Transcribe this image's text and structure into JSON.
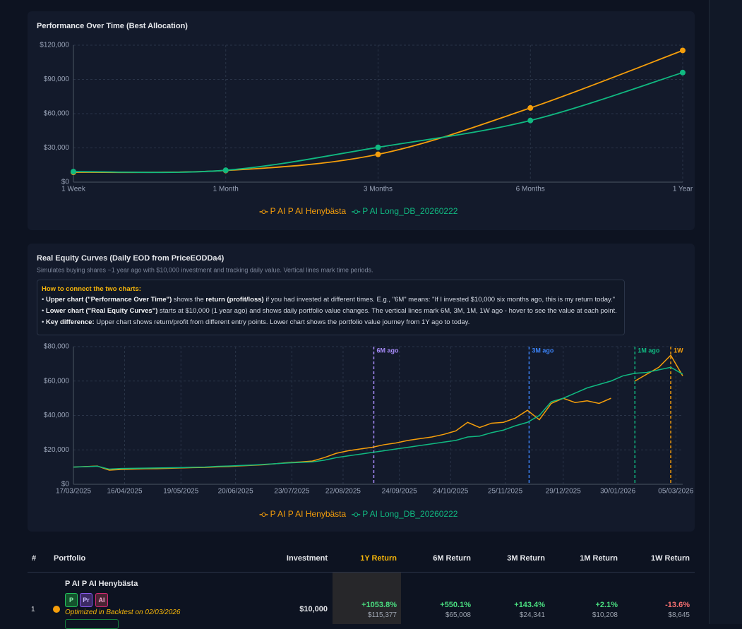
{
  "chart_data": [
    {
      "type": "line",
      "title": "Performance Over Time (Best Allocation)",
      "categories": [
        "1 Week",
        "1 Month",
        "3 Months",
        "6 Months",
        "1 Year"
      ],
      "series": [
        {
          "name": "P AI P AI Henybästa",
          "color": "#f59e0b",
          "values": [
            8645,
            10208,
            24341,
            65008,
            115377
          ]
        },
        {
          "name": "P AI Long_DB_20260222",
          "color": "#10b981",
          "values": [
            9200,
            10400,
            30500,
            54000,
            96000
          ]
        }
      ],
      "ylim": [
        0,
        120000
      ],
      "yticks": [
        {
          "value": 0,
          "label": "$0"
        },
        {
          "value": 30000,
          "label": "$30,000"
        },
        {
          "value": 60000,
          "label": "$60,000"
        },
        {
          "value": 90000,
          "label": "$90,000"
        },
        {
          "value": 120000,
          "label": "$120,000"
        }
      ],
      "grid": true,
      "legend": "bottom",
      "smooth": true,
      "points": true
    },
    {
      "type": "line",
      "title": "Real Equity Curves (Daily EOD from PriceEODDa4)",
      "subtitle": "Simulates buying shares ~1 year ago with $10,000 investment and tracking daily value. Vertical lines mark time periods.",
      "note": {
        "heading": "How to connect the two charts:",
        "items": [
          [
            {
              "text": "Upper chart (\"Performance Over Time\")",
              "bold": true
            },
            {
              "text": " shows the ",
              "bold": false
            },
            {
              "text": "return (profit/loss)",
              "bold": true
            },
            {
              "text": " if you had invested at different times. E.g., \"6M\" means: \"If I invested $10,000 six months ago, this is my return today.\"",
              "bold": false
            }
          ],
          [
            {
              "text": "Lower chart (\"Real Equity Curves\")",
              "bold": true
            },
            {
              "text": " starts at $10,000 (1 year ago) and shows daily portfolio value changes. The vertical lines mark 6M, 3M, 1M, 1W ago - hover to see the value at each point.",
              "bold": false
            }
          ],
          [
            {
              "text": "Key difference:",
              "bold": true
            },
            {
              "text": " Upper chart shows return/profit from different entry points. Lower chart shows the portfolio value journey from 1Y ago to today.",
              "bold": false
            }
          ]
        ]
      },
      "x": [
        "17/03/2025",
        "24/03/2025",
        "31/03/2025",
        "07/04/2025",
        "14/04/2025",
        "21/04/2025",
        "28/04/2025",
        "05/05/2025",
        "12/05/2025",
        "19/05/2025",
        "26/05/2025",
        "02/06/2025",
        "09/06/2025",
        "16/06/2025",
        "23/06/2025",
        "30/06/2025",
        "07/07/2025",
        "14/07/2025",
        "21/07/2025",
        "28/07/2025",
        "04/08/2025",
        "11/08/2025",
        "18/08/2025",
        "25/08/2025",
        "01/09/2025",
        "08/09/2025",
        "15/09/2025",
        "22/09/2025",
        "29/09/2025",
        "06/10/2025",
        "13/10/2025",
        "20/10/2025",
        "27/10/2025",
        "03/11/2025",
        "10/11/2025",
        "17/11/2025",
        "24/11/2025",
        "01/12/2025",
        "08/12/2025",
        "15/12/2025",
        "22/12/2025",
        "29/12/2025",
        "05/01/2026",
        "12/01/2026",
        "19/01/2026",
        "26/01/2026",
        "02/02/2026",
        "09/02/2026",
        "16/02/2026",
        "23/02/2026",
        "02/03/2026",
        "09/03/2026"
      ],
      "series": [
        {
          "name": "P AI P AI Henybästa",
          "color": "#f59e0b",
          "values": [
            10000,
            10300,
            10600,
            8200,
            8600,
            8800,
            9000,
            9100,
            9300,
            9500,
            9700,
            9800,
            10100,
            10300,
            10700,
            11000,
            11400,
            12000,
            12600,
            13000,
            13500,
            15500,
            18000,
            19500,
            20500,
            21500,
            23000,
            24000,
            25500,
            26500,
            27500,
            29000,
            31000,
            36000,
            33000,
            35500,
            36000,
            38500,
            43000,
            37500,
            47000,
            50000,
            47500,
            48500,
            47000,
            50000,
            null,
            60000,
            64000,
            68000,
            75000,
            63000
          ]
        },
        {
          "name": "P AI Long_DB_20260222",
          "color": "#10b981",
          "values": [
            10000,
            10200,
            10500,
            8800,
            9200,
            9300,
            9400,
            9500,
            9600,
            9700,
            9900,
            10000,
            10400,
            10600,
            10900,
            11200,
            11600,
            12000,
            12400,
            12700,
            13000,
            14000,
            15500,
            16500,
            17500,
            18500,
            19500,
            20500,
            21500,
            22500,
            23500,
            24500,
            25500,
            27500,
            28000,
            30000,
            31500,
            34000,
            36000,
            40000,
            48000,
            50000,
            53000,
            56000,
            58000,
            60000,
            63000,
            64500,
            65000,
            66500,
            68000,
            64000
          ]
        }
      ],
      "ylim": [
        0,
        80000
      ],
      "yticks": [
        {
          "value": 0,
          "label": "$0"
        },
        {
          "value": 20000,
          "label": "$20,000"
        },
        {
          "value": 40000,
          "label": "$40,000"
        },
        {
          "value": 60000,
          "label": "$60,000"
        },
        {
          "value": 80000,
          "label": "$80,000"
        }
      ],
      "xticks": [
        "17/03/2025",
        "16/04/2025",
        "19/05/2025",
        "20/06/2025",
        "23/07/2025",
        "22/08/2025",
        "24/09/2025",
        "24/10/2025",
        "25/11/2025",
        "29/12/2025",
        "30/01/2026",
        "05/03/2026"
      ],
      "markers": [
        {
          "label": "6M ago",
          "x": "09/09/2025",
          "color": "#a78bfa"
        },
        {
          "label": "3M ago",
          "x": "09/12/2025",
          "color": "#3b82f6"
        },
        {
          "label": "1M ago",
          "x": "09/02/2026",
          "color": "#10b981"
        },
        {
          "label": "1W",
          "x": "02/03/2026",
          "color": "#f59e0b"
        }
      ],
      "grid": true,
      "legend": "bottom",
      "smooth": false,
      "points": false
    }
  ],
  "table": {
    "columns": [
      "#",
      "Portfolio",
      "Investment",
      "1Y Return",
      "6M Return",
      "3M Return",
      "1M Return",
      "1W Return"
    ],
    "rows": [
      {
        "rank": 1,
        "portfolio": "P AI P AI Henybästa",
        "badges": [
          "P",
          "Pr",
          "AI"
        ],
        "note": "Optimized in Backtest on 02/03/2026",
        "investment": "$10,000",
        "returns": [
          {
            "pct": "+1053.8%",
            "value": "$115,377"
          },
          {
            "pct": "+550.1%",
            "value": "$65,008"
          },
          {
            "pct": "+143.4%",
            "value": "$24,341"
          },
          {
            "pct": "+2.1%",
            "value": "$10,208"
          },
          {
            "pct": "-13.6%",
            "value": "$8,645"
          }
        ]
      }
    ]
  }
}
